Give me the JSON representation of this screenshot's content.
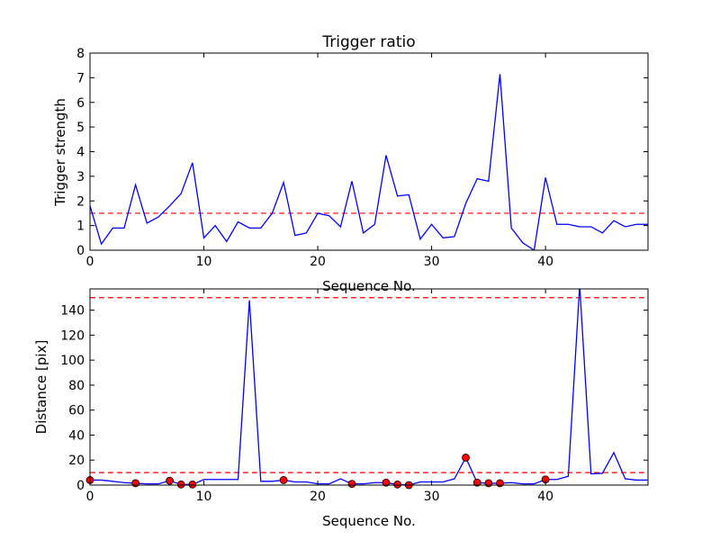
{
  "chart_data": [
    {
      "type": "line",
      "title": "Trigger ratio",
      "xlabel": "Sequence No.",
      "ylabel": "Trigger strength",
      "xlim": [
        0,
        49
      ],
      "ylim": [
        0,
        8
      ],
      "xticks": [
        0,
        10,
        20,
        30,
        40
      ],
      "yticks": [
        0,
        1,
        2,
        3,
        4,
        5,
        6,
        7,
        8
      ],
      "grid": false,
      "series": [
        {
          "color": "#0000ff",
          "x": [
            0,
            1,
            2,
            3,
            4,
            5,
            6,
            7,
            8,
            9,
            10,
            11,
            12,
            13,
            14,
            15,
            16,
            17,
            18,
            19,
            20,
            21,
            22,
            23,
            24,
            25,
            26,
            27,
            28,
            29,
            30,
            31,
            32,
            33,
            34,
            35,
            36,
            37,
            38,
            39,
            40,
            41,
            42,
            43,
            44,
            45,
            46,
            47,
            48,
            49
          ],
          "values": [
            1.8,
            0.25,
            0.9,
            0.9,
            2.65,
            1.1,
            1.35,
            1.8,
            2.3,
            3.55,
            0.5,
            1.0,
            0.35,
            1.15,
            0.9,
            0.9,
            1.5,
            2.75,
            0.6,
            0.7,
            1.5,
            1.4,
            0.95,
            2.8,
            0.7,
            1.05,
            3.85,
            2.2,
            2.25,
            0.45,
            1.05,
            0.5,
            0.55,
            1.9,
            2.9,
            2.8,
            7.15,
            0.9,
            0.3,
            0.0,
            2.95,
            1.05,
            1.05,
            0.95,
            0.95,
            0.7,
            1.2,
            0.95,
            1.05,
            1.05
          ]
        }
      ],
      "threshold_lines": [
        {
          "y": 1.5,
          "color": "#ff0000",
          "style": "dashed"
        }
      ]
    },
    {
      "type": "line",
      "title": "",
      "xlabel": "Sequence No.",
      "ylabel": "Distance [pix]",
      "xlim": [
        0,
        49
      ],
      "ylim": [
        0,
        157
      ],
      "xticks": [
        0,
        10,
        20,
        30,
        40
      ],
      "yticks": [
        0,
        20,
        40,
        60,
        80,
        100,
        120,
        140
      ],
      "grid": false,
      "series": [
        {
          "color": "#0000ff",
          "x": [
            0,
            1,
            2,
            3,
            4,
            5,
            6,
            7,
            8,
            9,
            10,
            11,
            12,
            13,
            14,
            15,
            16,
            17,
            18,
            19,
            20,
            21,
            22,
            23,
            24,
            25,
            26,
            27,
            28,
            29,
            30,
            31,
            32,
            33,
            34,
            35,
            36,
            37,
            38,
            39,
            40,
            41,
            42,
            43,
            44,
            45,
            46,
            47,
            48,
            49
          ],
          "values": [
            4,
            4,
            3,
            2,
            1.5,
            1,
            1,
            3.5,
            0.5,
            0.5,
            4.5,
            4.5,
            4.5,
            4.5,
            148,
            3,
            3,
            4,
            2.5,
            2.5,
            1,
            1,
            5,
            1,
            1,
            2,
            2,
            0.5,
            0,
            2.5,
            2.5,
            2.5,
            5,
            22,
            2,
            1.5,
            1.5,
            2,
            1,
            1,
            4.5,
            4.5,
            7,
            160,
            9,
            9.5,
            26,
            5,
            4,
            4
          ]
        }
      ],
      "highlight_points": {
        "color": "#ff0000",
        "x": [
          0,
          4,
          7,
          8,
          9,
          17,
          23,
          26,
          27,
          28,
          33,
          34,
          35,
          36,
          40
        ],
        "y": [
          4,
          1.5,
          3.5,
          0.5,
          0.5,
          4,
          1,
          2,
          0.5,
          0,
          22,
          2,
          1.5,
          1.5,
          4.5
        ]
      },
      "threshold_lines": [
        {
          "y": 150,
          "color": "#ff0000",
          "style": "dashed"
        },
        {
          "y": 10,
          "color": "#ff0000",
          "style": "dashed"
        }
      ]
    }
  ]
}
